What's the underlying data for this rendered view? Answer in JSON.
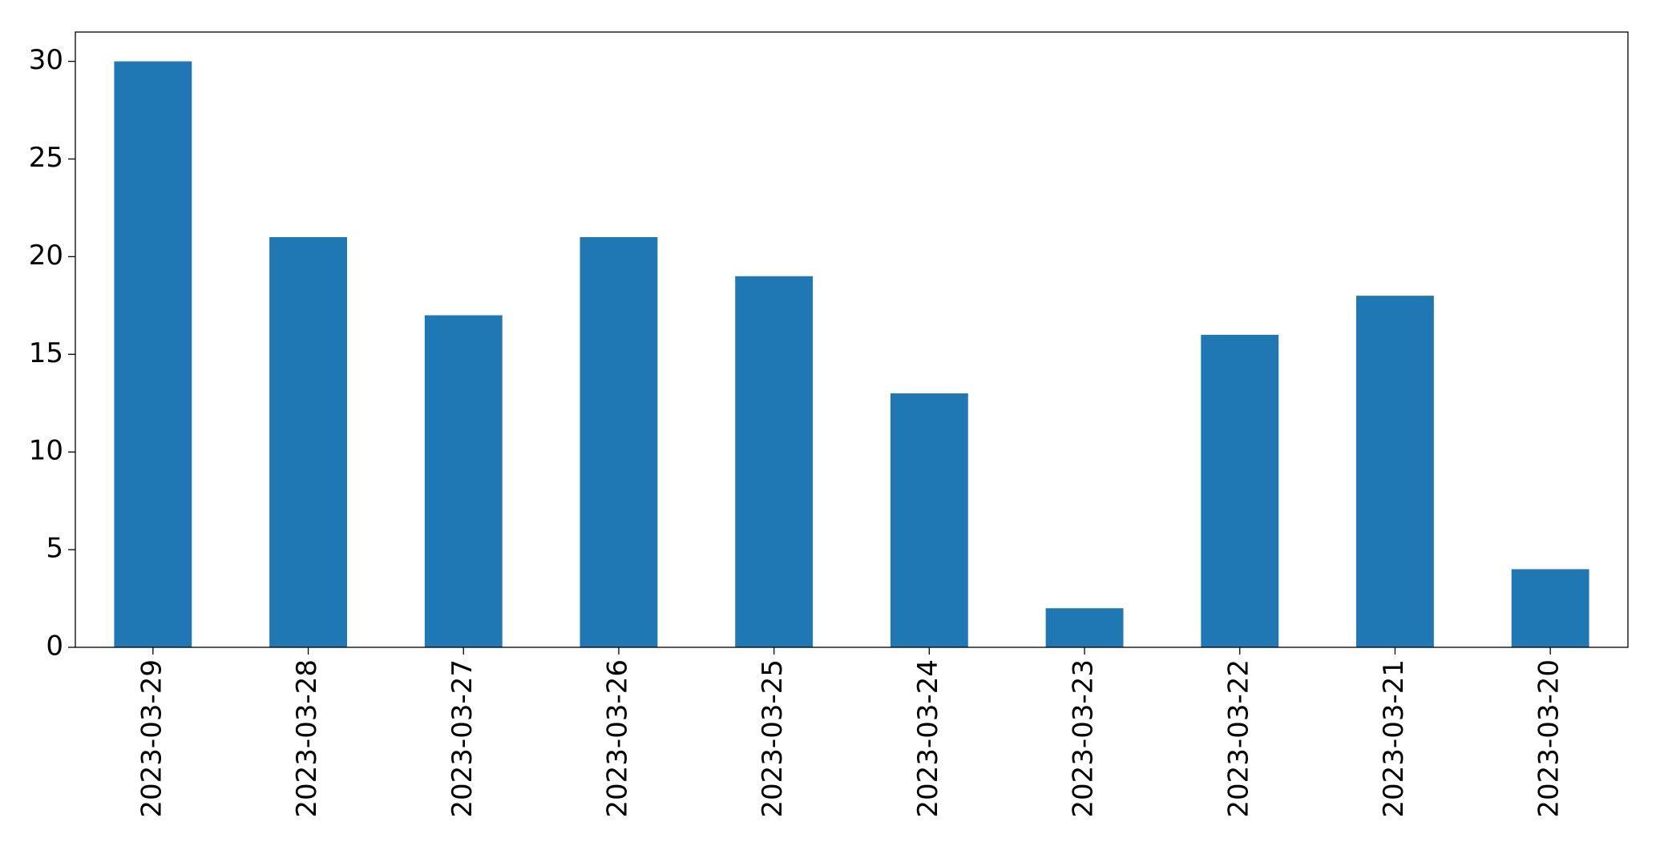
{
  "chart_data": {
    "type": "bar",
    "categories": [
      "2023-03-29",
      "2023-03-28",
      "2023-03-27",
      "2023-03-26",
      "2023-03-25",
      "2023-03-24",
      "2023-03-23",
      "2023-03-22",
      "2023-03-21",
      "2023-03-20"
    ],
    "values": [
      30,
      21,
      17,
      21,
      19,
      13,
      2,
      16,
      18,
      4
    ],
    "color": "#1f77b4",
    "ylim": [
      0,
      31.5
    ],
    "yticks": [
      0,
      5,
      10,
      15,
      20,
      25,
      30
    ],
    "grid": false
  }
}
